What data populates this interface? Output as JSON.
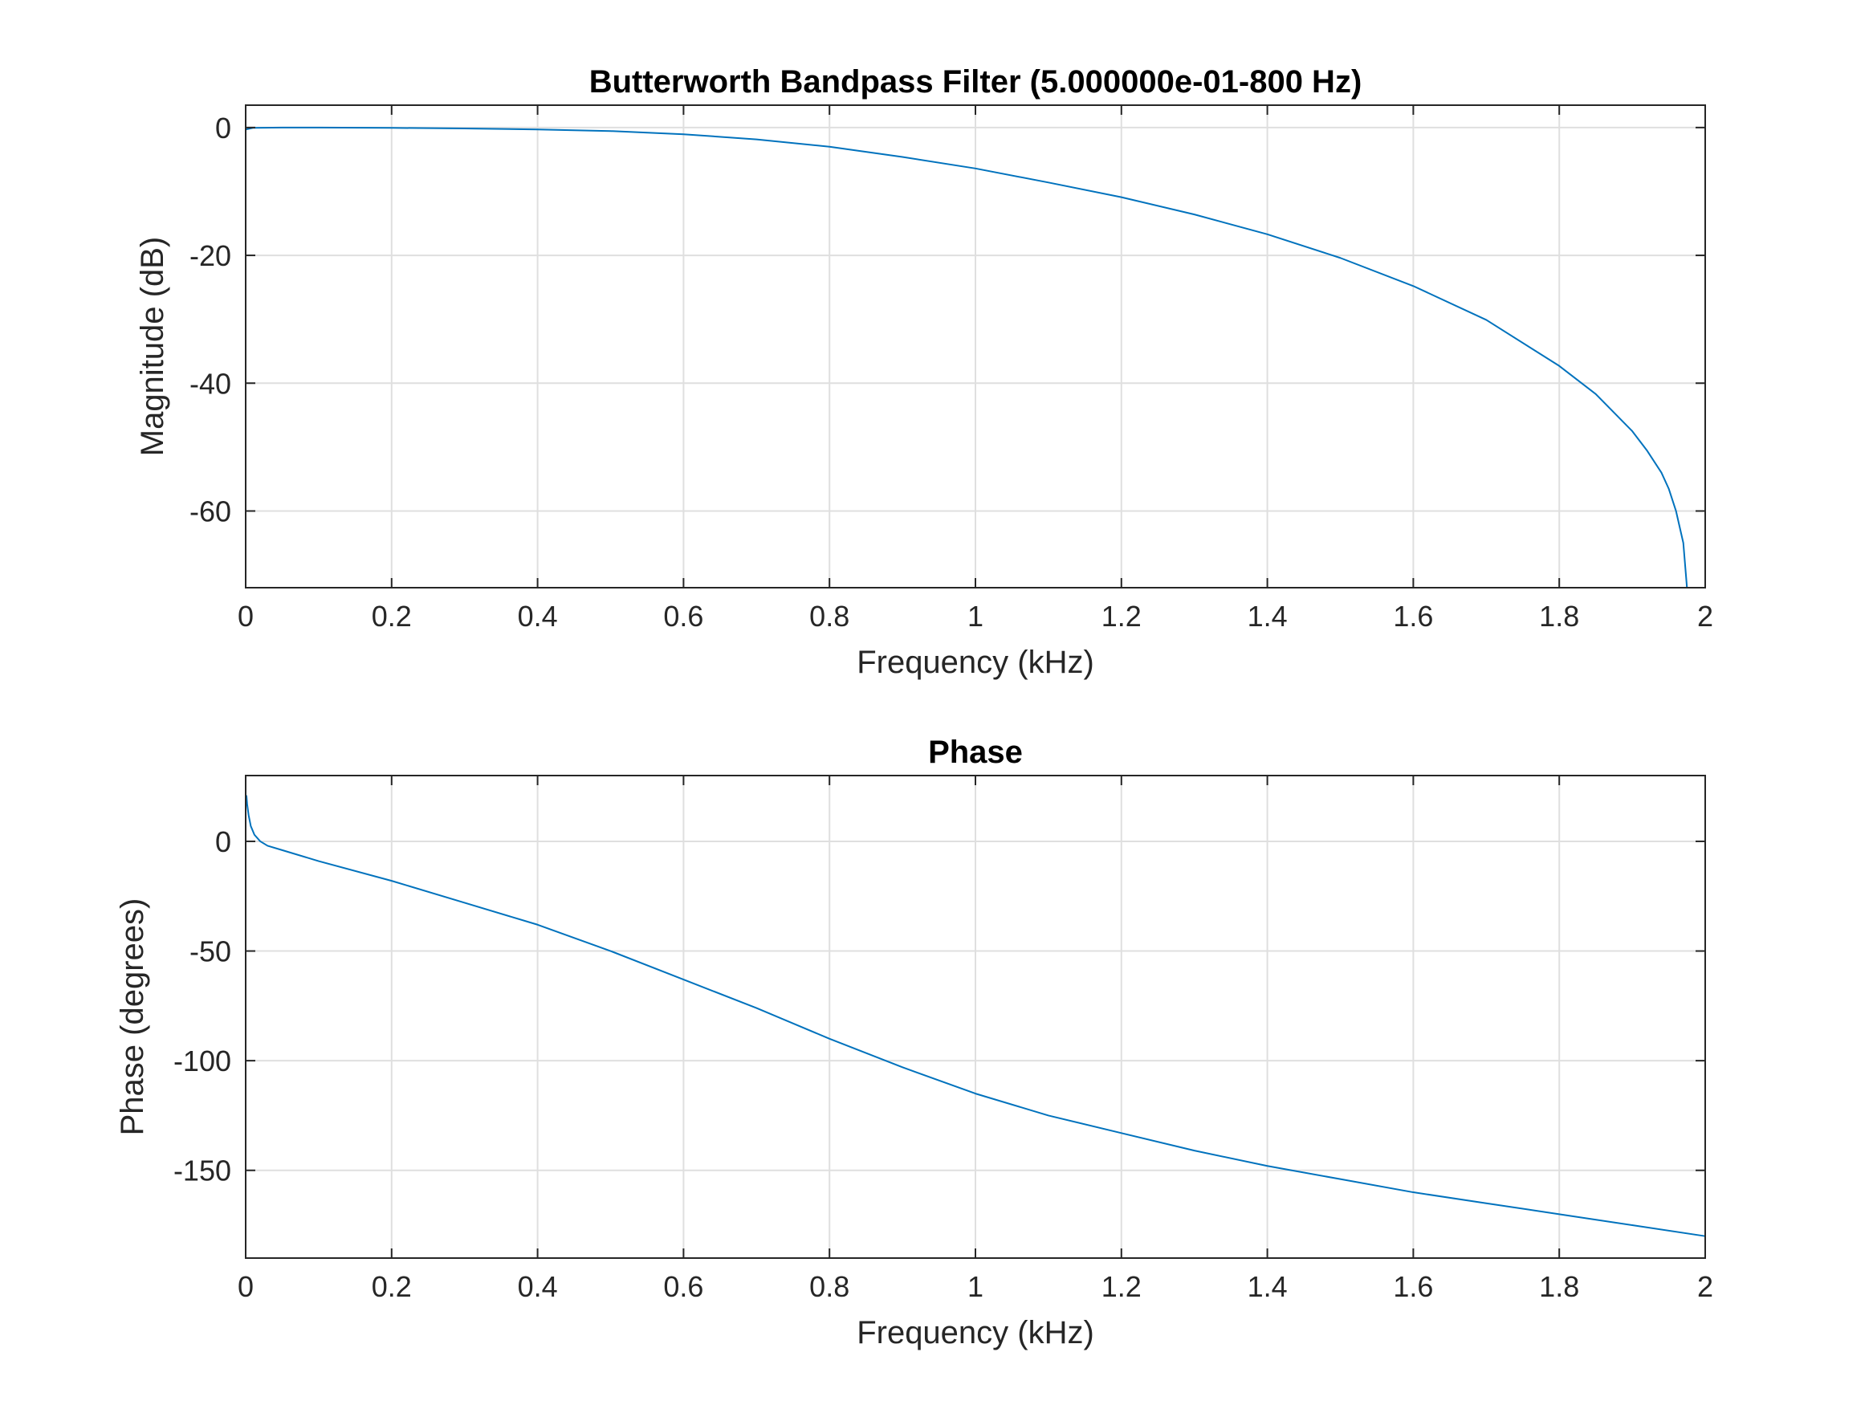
{
  "chart_data": [
    {
      "type": "line",
      "title": "Butterworth Bandpass Filter (5.000000e-01-800 Hz)",
      "xlabel": "Frequency (kHz)",
      "ylabel": "Magnitude (dB)",
      "xlim": [
        0,
        2
      ],
      "ylim": [
        -72,
        3.5
      ],
      "xticks": [
        0,
        0.2,
        0.4,
        0.6,
        0.8,
        1,
        1.2,
        1.4,
        1.6,
        1.8,
        2
      ],
      "xtick_labels": [
        "0",
        "0.2",
        "0.4",
        "0.6",
        "0.8",
        "1",
        "1.2",
        "1.4",
        "1.6",
        "1.8",
        "2"
      ],
      "yticks": [
        0,
        -20,
        -40,
        -60
      ],
      "ytick_labels": [
        "0",
        "-20",
        "-40",
        "-60"
      ],
      "grid": true,
      "line_color": "#0072BD",
      "series": [
        {
          "x": [
            0,
            0.01,
            0.05,
            0.1,
            0.2,
            0.3,
            0.4,
            0.5,
            0.6,
            0.7,
            0.8,
            0.9,
            1.0,
            1.1,
            1.2,
            1.3,
            1.4,
            1.5,
            1.6,
            1.7,
            1.8,
            1.85,
            1.9,
            1.92,
            1.94,
            1.95,
            1.96,
            1.97,
            1.975
          ],
          "y": [
            -0.3,
            -0.05,
            0,
            0,
            -0.05,
            -0.15,
            -0.3,
            -0.55,
            -1.05,
            -1.85,
            -3.0,
            -4.6,
            -6.4,
            -8.6,
            -10.9,
            -13.6,
            -16.7,
            -20.4,
            -24.8,
            -30.1,
            -37.3,
            -41.7,
            -47.5,
            -50.5,
            -54.0,
            -56.5,
            -60.0,
            -65.0,
            -72.0
          ]
        }
      ]
    },
    {
      "type": "line",
      "title": "Phase",
      "xlabel": "Frequency (kHz)",
      "ylabel": "Phase (degrees)",
      "xlim": [
        0,
        2
      ],
      "ylim": [
        -190,
        30
      ],
      "xticks": [
        0,
        0.2,
        0.4,
        0.6,
        0.8,
        1,
        1.2,
        1.4,
        1.6,
        1.8,
        2
      ],
      "xtick_labels": [
        "0",
        "0.2",
        "0.4",
        "0.6",
        "0.8",
        "1",
        "1.2",
        "1.4",
        "1.6",
        "1.8",
        "2"
      ],
      "yticks": [
        0,
        -50,
        -100,
        -150
      ],
      "ytick_labels": [
        "0",
        "-50",
        "-100",
        "-150"
      ],
      "grid": true,
      "line_color": "#0072BD",
      "series": [
        {
          "x": [
            0.001,
            0.002,
            0.004,
            0.007,
            0.012,
            0.02,
            0.03,
            0.05,
            0.1,
            0.2,
            0.3,
            0.4,
            0.5,
            0.6,
            0.7,
            0.8,
            0.9,
            1.0,
            1.1,
            1.2,
            1.3,
            1.4,
            1.5,
            1.6,
            1.7,
            1.8,
            1.9,
            2.0
          ],
          "y": [
            21,
            17,
            12,
            7,
            3,
            0,
            -2,
            -4,
            -9,
            -18,
            -28,
            -38,
            -50,
            -63,
            -76,
            -90,
            -103,
            -115,
            -125,
            -133,
            -141,
            -148,
            -154,
            -160,
            -165,
            -170,
            -175,
            -180
          ]
        }
      ]
    }
  ]
}
